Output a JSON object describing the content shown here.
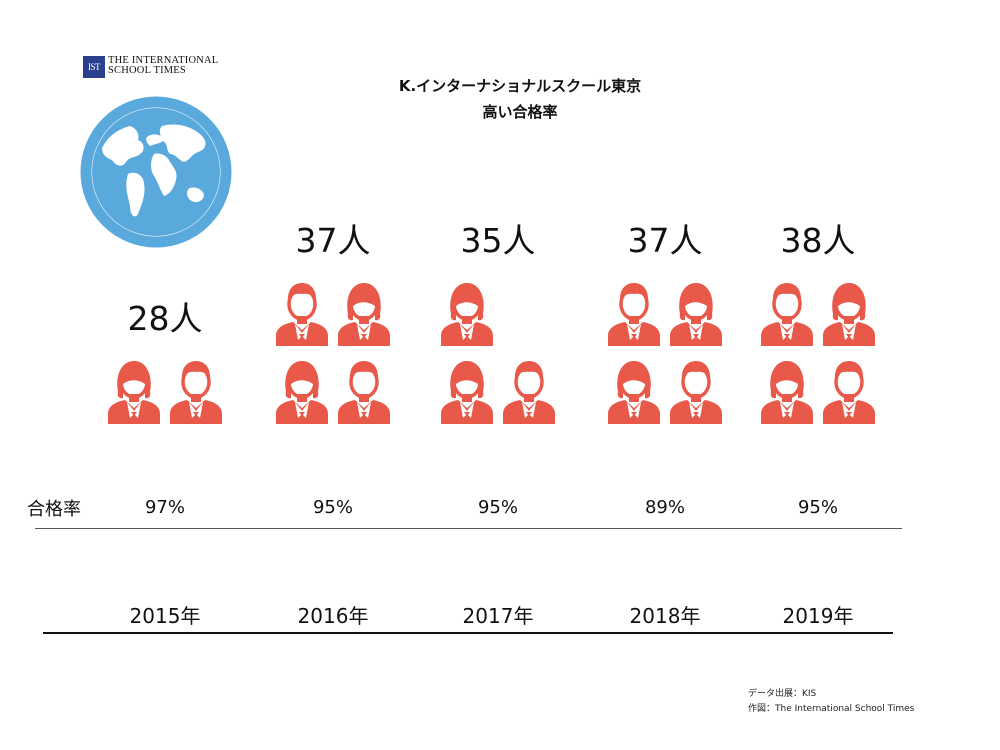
{
  "logo": {
    "mark": "IST",
    "line1": "THE INTERNATIONAL",
    "line2": "SCHOOL TIMES"
  },
  "title": "K.インターナショナルスクール東京",
  "subtitle": "高い合格率",
  "rate_label": "合格率",
  "chart_data": {
    "type": "pictogram",
    "title": "K.インターナショナルスクール東京",
    "subtitle": "高い合格率",
    "categories": [
      "2015年",
      "2016年",
      "2017年",
      "2018年",
      "2019年"
    ],
    "series": [
      {
        "name": "",
        "values": [
          28,
          37,
          35,
          37,
          38
        ],
        "labels": [
          "28人",
          "37人",
          "35人",
          "37人",
          "38人"
        ],
        "icons": [
          2,
          4,
          3,
          4,
          4
        ]
      },
      {
        "name": "合格率",
        "values": [
          97,
          95,
          95,
          89,
          95
        ],
        "labels": [
          "97%",
          "95%",
          "95%",
          "89%",
          "95%"
        ]
      }
    ],
    "icon_color": "#e8594a"
  },
  "credits": {
    "source": "データ出展：KIS",
    "author": "作図：The International School Times"
  },
  "colors": {
    "globe": "#5aa9dc",
    "icon": "#e8594a",
    "logo": "#2b3f8f"
  }
}
